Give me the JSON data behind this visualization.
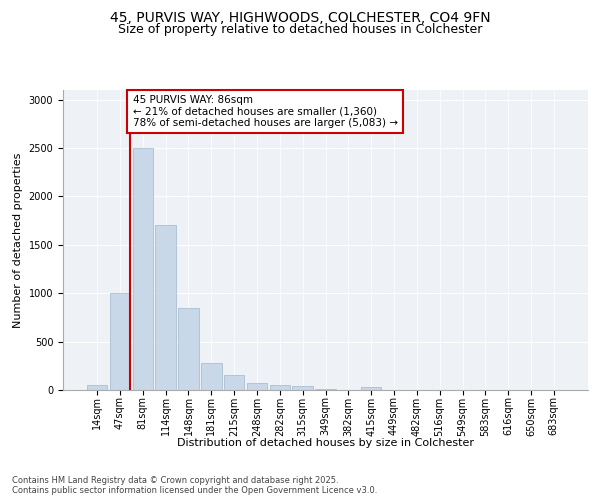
{
  "title_line1": "45, PURVIS WAY, HIGHWOODS, COLCHESTER, CO4 9FN",
  "title_line2": "Size of property relative to detached houses in Colchester",
  "xlabel": "Distribution of detached houses by size in Colchester",
  "ylabel": "Number of detached properties",
  "categories": [
    "14sqm",
    "47sqm",
    "81sqm",
    "114sqm",
    "148sqm",
    "181sqm",
    "215sqm",
    "248sqm",
    "282sqm",
    "315sqm",
    "349sqm",
    "382sqm",
    "415sqm",
    "449sqm",
    "482sqm",
    "516sqm",
    "549sqm",
    "583sqm",
    "616sqm",
    "650sqm",
    "683sqm"
  ],
  "values": [
    50,
    1000,
    2500,
    1700,
    850,
    280,
    150,
    70,
    55,
    40,
    10,
    5,
    30,
    0,
    0,
    0,
    0,
    0,
    0,
    0,
    0
  ],
  "bar_color": "#c8d8e8",
  "bar_edgecolor": "#a0b8cc",
  "vline_color": "#cc0000",
  "annotation_text": "45 PURVIS WAY: 86sqm\n← 21% of detached houses are smaller (1,360)\n78% of semi-detached houses are larger (5,083) →",
  "annotation_box_edgecolor": "#cc0000",
  "ylim": [
    0,
    3100
  ],
  "yticks": [
    0,
    500,
    1000,
    1500,
    2000,
    2500,
    3000
  ],
  "background_color": "#eef2f7",
  "footnote": "Contains HM Land Registry data © Crown copyright and database right 2025.\nContains public sector information licensed under the Open Government Licence v3.0.",
  "title_fontsize": 10,
  "subtitle_fontsize": 9,
  "axis_label_fontsize": 8,
  "tick_fontsize": 7,
  "annotation_fontsize": 7.5,
  "footnote_fontsize": 6
}
